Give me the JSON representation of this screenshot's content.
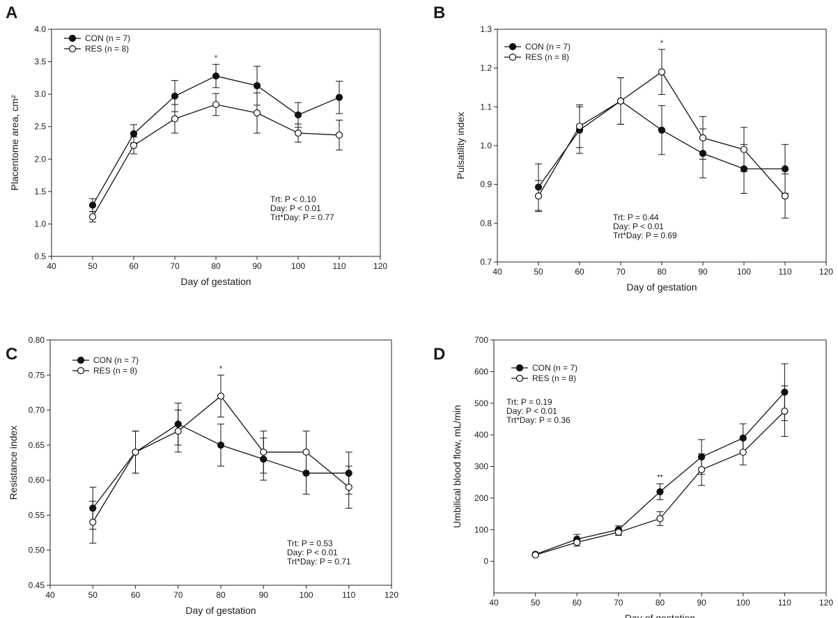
{
  "chart_data": [
    {
      "panel": "A",
      "type": "line",
      "xlabel": "Day of gestation",
      "ylabel": "Placentome area, cm²",
      "xlim": [
        40,
        120
      ],
      "ylim": [
        0.5,
        4.0
      ],
      "xticks": [
        "40",
        "50",
        "60",
        "70",
        "80",
        "90",
        "100",
        "110",
        "120"
      ],
      "yticks": [
        "0.5",
        "1.0",
        "1.5",
        "2.0",
        "2.5",
        "3.0",
        "3.5",
        "4.0"
      ],
      "x": [
        50,
        60,
        70,
        80,
        90,
        100,
        110
      ],
      "series": [
        {
          "name": "CON (n = 7)",
          "marker": "filled",
          "values": [
            1.29,
            2.39,
            2.97,
            3.28,
            3.13,
            2.68,
            2.95
          ],
          "errors": [
            0.1,
            0.14,
            0.24,
            0.18,
            0.3,
            0.19,
            0.25
          ]
        },
        {
          "name": "RES (n = 8)",
          "marker": "open",
          "values": [
            1.11,
            2.21,
            2.62,
            2.84,
            2.71,
            2.4,
            2.37
          ],
          "errors": [
            0.08,
            0.13,
            0.22,
            0.17,
            0.31,
            0.14,
            0.23
          ]
        }
      ],
      "significance": [
        {
          "x": 80,
          "label": "*"
        }
      ],
      "stats": [
        "Trt: P < 0.10",
        "Day: P < 0.01",
        "Trt*Day: P = 0.77"
      ]
    },
    {
      "panel": "B",
      "type": "line",
      "xlabel": "Day of gestation",
      "ylabel": "Pulsatility index",
      "xlim": [
        40,
        120
      ],
      "ylim": [
        0.7,
        1.3
      ],
      "xticks": [
        "40",
        "50",
        "60",
        "70",
        "80",
        "90",
        "100",
        "110",
        "120"
      ],
      "yticks": [
        "0.7",
        "0.8",
        "0.9",
        "1.0",
        "1.1",
        "1.2",
        "1.3"
      ],
      "x": [
        50,
        60,
        70,
        80,
        90,
        100,
        110
      ],
      "series": [
        {
          "name": "CON (n = 7)",
          "marker": "filled",
          "values": [
            0.893,
            1.04,
            1.115,
            1.04,
            0.98,
            0.94,
            0.94
          ],
          "errors": [
            0.06,
            0.06,
            0.06,
            0.063,
            0.063,
            0.063,
            0.063
          ]
        },
        {
          "name": "RES (n = 8)",
          "marker": "open",
          "values": [
            0.87,
            1.05,
            1.115,
            1.19,
            1.02,
            0.99,
            0.87
          ],
          "errors": [
            0.04,
            0.055,
            0.06,
            0.058,
            0.055,
            0.057,
            0.057
          ]
        }
      ],
      "significance": [
        {
          "x": 80,
          "label": "*"
        }
      ],
      "stats": [
        "Trt: P = 0.44",
        "Day: P < 0.01",
        "Trt*Day: P = 0.69"
      ]
    },
    {
      "panel": "C",
      "type": "line",
      "xlabel": "Day of gestation",
      "ylabel": "Resistance index",
      "xlim": [
        40,
        120
      ],
      "ylim": [
        0.45,
        0.8
      ],
      "xticks": [
        "40",
        "50",
        "60",
        "70",
        "80",
        "90",
        "100",
        "110",
        "120"
      ],
      "yticks": [
        "0.45",
        "0.50",
        "0.55",
        "0.60",
        "0.65",
        "0.70",
        "0.75",
        "0.80"
      ],
      "x": [
        50,
        60,
        70,
        80,
        90,
        100,
        110
      ],
      "series": [
        {
          "name": "CON (n = 7)",
          "marker": "filled",
          "values": [
            0.56,
            0.64,
            0.68,
            0.65,
            0.63,
            0.61,
            0.61
          ],
          "errors": [
            0.03,
            0.03,
            0.03,
            0.03,
            0.03,
            0.03,
            0.03
          ]
        },
        {
          "name": "RES (n = 8)",
          "marker": "open",
          "values": [
            0.54,
            0.64,
            0.67,
            0.72,
            0.64,
            0.64,
            0.59
          ],
          "errors": [
            0.03,
            0.03,
            0.03,
            0.03,
            0.03,
            0.03,
            0.03
          ]
        }
      ],
      "significance": [
        {
          "x": 80,
          "label": "*"
        }
      ],
      "stats": [
        "Trt: P = 0.53",
        "Day: P < 0.01",
        "Trt*Day: P = 0.71"
      ]
    },
    {
      "panel": "D",
      "type": "line",
      "xlabel": "Day of gestation",
      "ylabel": "Umbilical blood flow, mL/min",
      "xlim": [
        40,
        120
      ],
      "ylim": [
        -100,
        700
      ],
      "xticks": [
        "40",
        "50",
        "60",
        "70",
        "80",
        "90",
        "100",
        "110",
        "120"
      ],
      "yticks": [
        "0",
        "100",
        "200",
        "300",
        "400",
        "500",
        "600",
        "700"
      ],
      "x": [
        50,
        60,
        70,
        80,
        90,
        100,
        110
      ],
      "series": [
        {
          "name": "CON (n = 7)",
          "marker": "filled",
          "values": [
            22,
            70,
            100,
            220,
            330,
            390,
            535
          ],
          "errors": [
            4,
            15,
            12,
            25,
            55,
            45,
            90
          ]
        },
        {
          "name": "RES (n = 8)",
          "marker": "open",
          "values": [
            20,
            60,
            92,
            135,
            290,
            345,
            475
          ],
          "errors": [
            4,
            12,
            10,
            22,
            50,
            40,
            80
          ]
        }
      ],
      "significance": [
        {
          "x": 80,
          "label": "**"
        }
      ],
      "stats": [
        "Trt: P = 0.19",
        "Day: P < 0.01",
        "Trt*Day: P = 0.36"
      ]
    }
  ]
}
